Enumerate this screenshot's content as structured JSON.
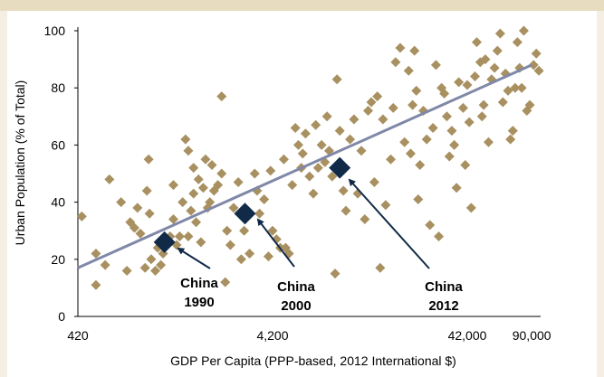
{
  "chart_data": {
    "type": "scatter",
    "xlabel": "GDP Per Capita (PPP-based, 2012 International $)",
    "ylabel": "Urban Population (% of Total)",
    "x_scale": "log",
    "xlim": [
      420,
      100000
    ],
    "ylim": [
      0,
      100
    ],
    "x_ticks": [
      {
        "value": 420,
        "label": "420"
      },
      {
        "value": 4200,
        "label": "4,200"
      },
      {
        "value": 42000,
        "label": "42,000"
      },
      {
        "value": 90000,
        "label": "90,000"
      }
    ],
    "y_ticks": [
      0,
      20,
      40,
      60,
      80,
      100
    ],
    "grid": false,
    "colors": {
      "countries": "#a89060",
      "china": "#102a48",
      "trend": "#8088a8"
    },
    "trendline": {
      "x": [
        420,
        90000
      ],
      "y": [
        17,
        88
      ]
    },
    "series": [
      {
        "points": [
          [
            440,
            35
          ],
          [
            520,
            11
          ],
          [
            520,
            22
          ],
          [
            580,
            18
          ],
          [
            610,
            48
          ],
          [
            700,
            40
          ],
          [
            750,
            16
          ],
          [
            780,
            33
          ],
          [
            820,
            31
          ],
          [
            850,
            38
          ],
          [
            880,
            29
          ],
          [
            930,
            17
          ],
          [
            950,
            44
          ],
          [
            970,
            55
          ],
          [
            980,
            36
          ],
          [
            1000,
            20
          ],
          [
            1050,
            16
          ],
          [
            1080,
            24
          ],
          [
            1120,
            18
          ],
          [
            1150,
            22
          ],
          [
            1200,
            27
          ],
          [
            1250,
            28
          ],
          [
            1300,
            34
          ],
          [
            1300,
            46
          ],
          [
            1350,
            25
          ],
          [
            1400,
            28
          ],
          [
            1450,
            40
          ],
          [
            1500,
            62
          ],
          [
            1550,
            28
          ],
          [
            1550,
            58
          ],
          [
            1600,
            37
          ],
          [
            1650,
            43
          ],
          [
            1650,
            52
          ],
          [
            1700,
            33
          ],
          [
            1750,
            48
          ],
          [
            1800,
            26
          ],
          [
            1850,
            45
          ],
          [
            1900,
            55
          ],
          [
            1950,
            38
          ],
          [
            2000,
            40
          ],
          [
            2050,
            53
          ],
          [
            2100,
            44
          ],
          [
            2200,
            46
          ],
          [
            2300,
            50
          ],
          [
            2300,
            77
          ],
          [
            2400,
            12
          ],
          [
            2450,
            30
          ],
          [
            2550,
            25
          ],
          [
            2650,
            38
          ],
          [
            2800,
            47
          ],
          [
            2900,
            20
          ],
          [
            3000,
            30
          ],
          [
            3200,
            22
          ],
          [
            3400,
            50
          ],
          [
            3500,
            44
          ],
          [
            3600,
            36
          ],
          [
            3800,
            41
          ],
          [
            4000,
            21
          ],
          [
            4100,
            51
          ],
          [
            4200,
            30
          ],
          [
            4400,
            27
          ],
          [
            4600,
            24
          ],
          [
            4800,
            55
          ],
          [
            4900,
            24
          ],
          [
            5100,
            22
          ],
          [
            5300,
            46
          ],
          [
            5500,
            66
          ],
          [
            5700,
            60
          ],
          [
            5900,
            52
          ],
          [
            6000,
            57
          ],
          [
            6200,
            64
          ],
          [
            6500,
            49
          ],
          [
            6800,
            43
          ],
          [
            7000,
            67
          ],
          [
            7200,
            52
          ],
          [
            7500,
            60
          ],
          [
            7800,
            54
          ],
          [
            8000,
            70
          ],
          [
            8200,
            58
          ],
          [
            8500,
            49
          ],
          [
            8800,
            15
          ],
          [
            9000,
            83
          ],
          [
            9300,
            65
          ],
          [
            9700,
            44
          ],
          [
            10000,
            37
          ],
          [
            10500,
            62
          ],
          [
            11000,
            69
          ],
          [
            11500,
            43
          ],
          [
            12000,
            58
          ],
          [
            12500,
            34
          ],
          [
            13000,
            72
          ],
          [
            13500,
            75
          ],
          [
            14000,
            47
          ],
          [
            14500,
            77
          ],
          [
            15000,
            17
          ],
          [
            15500,
            69
          ],
          [
            16000,
            39
          ],
          [
            17000,
            55
          ],
          [
            17500,
            73
          ],
          [
            18000,
            89
          ],
          [
            19000,
            94
          ],
          [
            20000,
            61
          ],
          [
            21000,
            86
          ],
          [
            21500,
            57
          ],
          [
            22000,
            74
          ],
          [
            22500,
            93
          ],
          [
            23000,
            79
          ],
          [
            23500,
            41
          ],
          [
            24000,
            53
          ],
          [
            25000,
            72
          ],
          [
            26000,
            62
          ],
          [
            27000,
            32
          ],
          [
            28000,
            66
          ],
          [
            29000,
            88
          ],
          [
            30000,
            28
          ],
          [
            31000,
            80
          ],
          [
            32000,
            78
          ],
          [
            33000,
            70
          ],
          [
            34000,
            56
          ],
          [
            35000,
            65
          ],
          [
            36000,
            60
          ],
          [
            37000,
            45
          ],
          [
            38000,
            82
          ],
          [
            40000,
            73
          ],
          [
            41000,
            53
          ],
          [
            42000,
            81
          ],
          [
            43000,
            68
          ],
          [
            44000,
            38
          ],
          [
            46000,
            84
          ],
          [
            47000,
            96
          ],
          [
            49000,
            89
          ],
          [
            50000,
            70
          ],
          [
            51000,
            74
          ],
          [
            52000,
            90
          ],
          [
            54000,
            61
          ],
          [
            56000,
            83
          ],
          [
            58000,
            87
          ],
          [
            60000,
            93
          ],
          [
            62000,
            99
          ],
          [
            64000,
            75
          ],
          [
            66000,
            85
          ],
          [
            68000,
            79
          ],
          [
            70000,
            62
          ],
          [
            72000,
            65
          ],
          [
            74000,
            80
          ],
          [
            76000,
            96
          ],
          [
            78000,
            87
          ],
          [
            80000,
            80
          ],
          [
            82000,
            100
          ],
          [
            85000,
            72
          ],
          [
            88000,
            74
          ],
          [
            92000,
            88
          ],
          [
            95000,
            92
          ],
          [
            98000,
            86
          ]
        ]
      },
      {
        "name": "China",
        "points": [
          [
            1170,
            26
          ],
          [
            3030,
            36
          ],
          [
            9300,
            52
          ]
        ]
      }
    ],
    "annotations": [
      {
        "line1": "China",
        "line2": "1990",
        "x": 1170,
        "y": 26
      },
      {
        "line1": "China",
        "line2": "2000",
        "x": 3030,
        "y": 36
      },
      {
        "line1": "China",
        "line2": "2012",
        "x": 9300,
        "y": 52
      }
    ]
  }
}
